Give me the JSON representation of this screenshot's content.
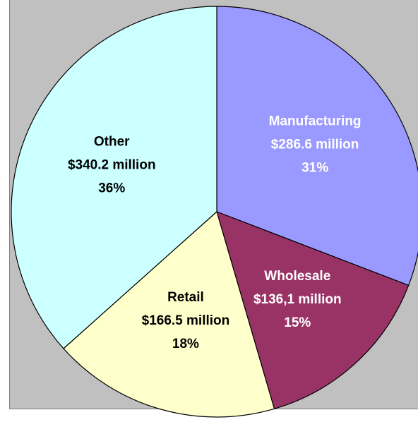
{
  "chart_data": {
    "type": "pie",
    "title": "",
    "slices": [
      {
        "category": "Manufacturing",
        "value_label": "$286.6 million",
        "percent_label": "31%",
        "value": 286.6,
        "percent": 31,
        "color": "#9999ff",
        "label_color": "#ffffff"
      },
      {
        "category": "Wholesale",
        "value_label": "$136,1 million",
        "percent_label": "15%",
        "value": 136.1,
        "percent": 15,
        "color": "#993366",
        "label_color": "#ffffff"
      },
      {
        "category": "Retail",
        "value_label": "$166.5 million",
        "percent_label": "18%",
        "value": 166.5,
        "percent": 18,
        "color": "#ffffcc",
        "label_color": "#000000"
      },
      {
        "category": "Other",
        "value_label": "$340.2 million",
        "percent_label": "36%",
        "value": 340.2,
        "percent": 36,
        "color": "#ccffff",
        "label_color": "#000000"
      }
    ],
    "start_angle_deg": 0,
    "direction": "clockwise",
    "plot_background": "#c0c0c0",
    "edge_color": "#000000",
    "legend": "none"
  }
}
